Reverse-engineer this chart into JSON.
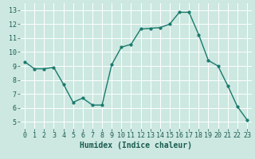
{
  "x": [
    0,
    1,
    2,
    3,
    4,
    5,
    6,
    7,
    8,
    9,
    10,
    11,
    12,
    13,
    14,
    15,
    16,
    17,
    18,
    19,
    20,
    21,
    22,
    23
  ],
  "y": [
    9.3,
    8.8,
    8.8,
    8.9,
    7.7,
    6.4,
    6.7,
    6.2,
    6.2,
    9.1,
    10.35,
    10.55,
    11.65,
    11.7,
    11.75,
    12.0,
    12.85,
    12.85,
    11.25,
    9.4,
    9.0,
    7.6,
    6.1,
    5.15
  ],
  "line_color": "#1a7a6e",
  "marker": "o",
  "marker_size": 2.0,
  "linewidth": 1.0,
  "xlabel": "Humidex (Indice chaleur)",
  "xlim": [
    -0.5,
    23.5
  ],
  "ylim": [
    4.5,
    13.5
  ],
  "yticks": [
    5,
    6,
    7,
    8,
    9,
    10,
    11,
    12,
    13
  ],
  "xticks": [
    0,
    1,
    2,
    3,
    4,
    5,
    6,
    7,
    8,
    9,
    10,
    11,
    12,
    13,
    14,
    15,
    16,
    17,
    18,
    19,
    20,
    21,
    22,
    23
  ],
  "xtick_labels": [
    "0",
    "1",
    "2",
    "3",
    "4",
    "5",
    "6",
    "7",
    "8",
    "9",
    "10",
    "11",
    "12",
    "13",
    "14",
    "15",
    "16",
    "17",
    "18",
    "19",
    "20",
    "21",
    "22",
    "23"
  ],
  "bg_color": "#cce8e0",
  "grid_color": "#ffffff",
  "tick_color": "#1a5c52",
  "label_color": "#1a5c52",
  "xlabel_fontsize": 7.0,
  "tick_fontsize": 6.0
}
